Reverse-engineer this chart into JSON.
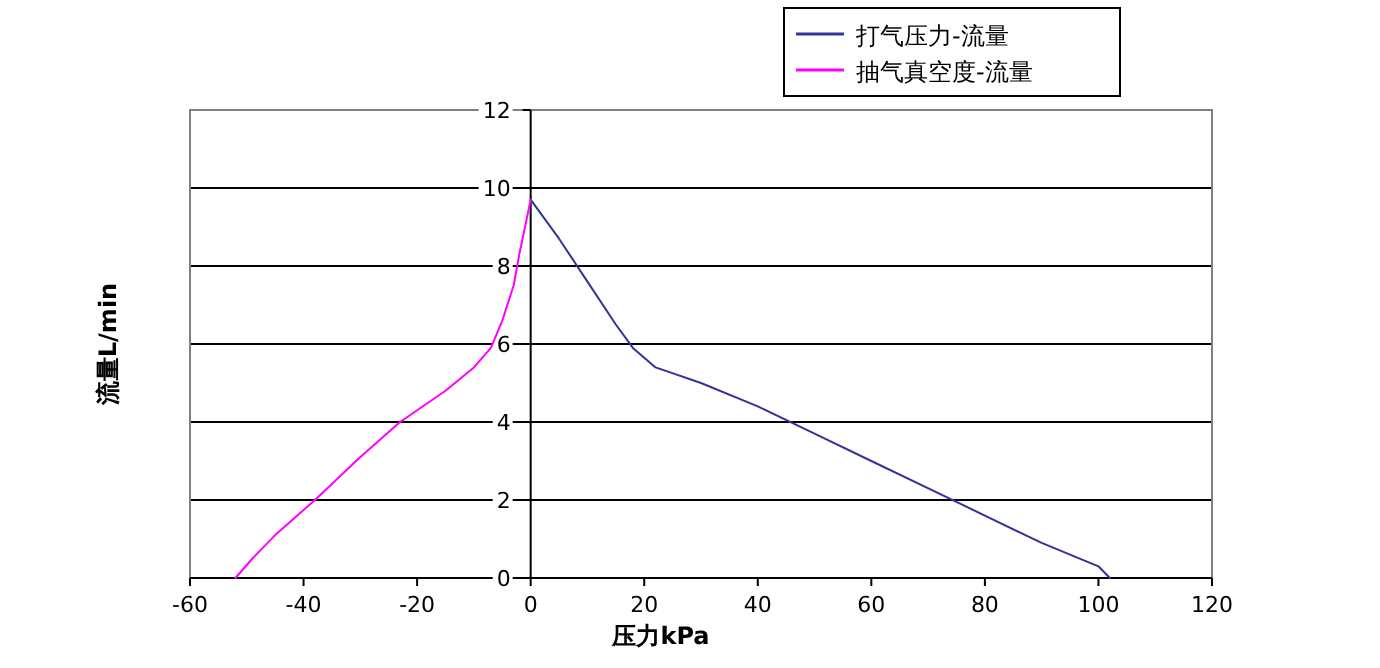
{
  "chart_data": {
    "type": "line",
    "xlabel": "压力kPa",
    "ylabel": "流量L/min",
    "xlim": [
      -60,
      120
    ],
    "ylim": [
      0,
      12
    ],
    "xticks": [
      -60,
      -40,
      -20,
      0,
      20,
      40,
      60,
      80,
      100,
      120
    ],
    "yticks": [
      0,
      2,
      4,
      6,
      8,
      10,
      12
    ],
    "grid": "y",
    "legend": "top right",
    "series": [
      {
        "name": "打气压力-流量",
        "color": "#333399",
        "x": [
          0,
          5,
          10,
          15,
          18,
          22,
          30,
          40,
          50,
          60,
          75,
          90,
          100,
          102
        ],
        "values": [
          9.7,
          8.7,
          7.6,
          6.5,
          5.9,
          5.4,
          5.0,
          4.4,
          3.7,
          3.0,
          1.95,
          0.9,
          0.3,
          0
        ]
      },
      {
        "name": "抽气真空度-流量",
        "color": "#ff00ff",
        "x": [
          0,
          -1,
          -2,
          -3,
          -5,
          -7,
          -10,
          -15,
          -23,
          -30,
          -38,
          -45,
          -49,
          -52
        ],
        "values": [
          9.7,
          9.0,
          8.3,
          7.5,
          6.6,
          5.9,
          5.4,
          4.8,
          4.0,
          3.1,
          2.0,
          1.1,
          0.5,
          0
        ]
      }
    ]
  }
}
